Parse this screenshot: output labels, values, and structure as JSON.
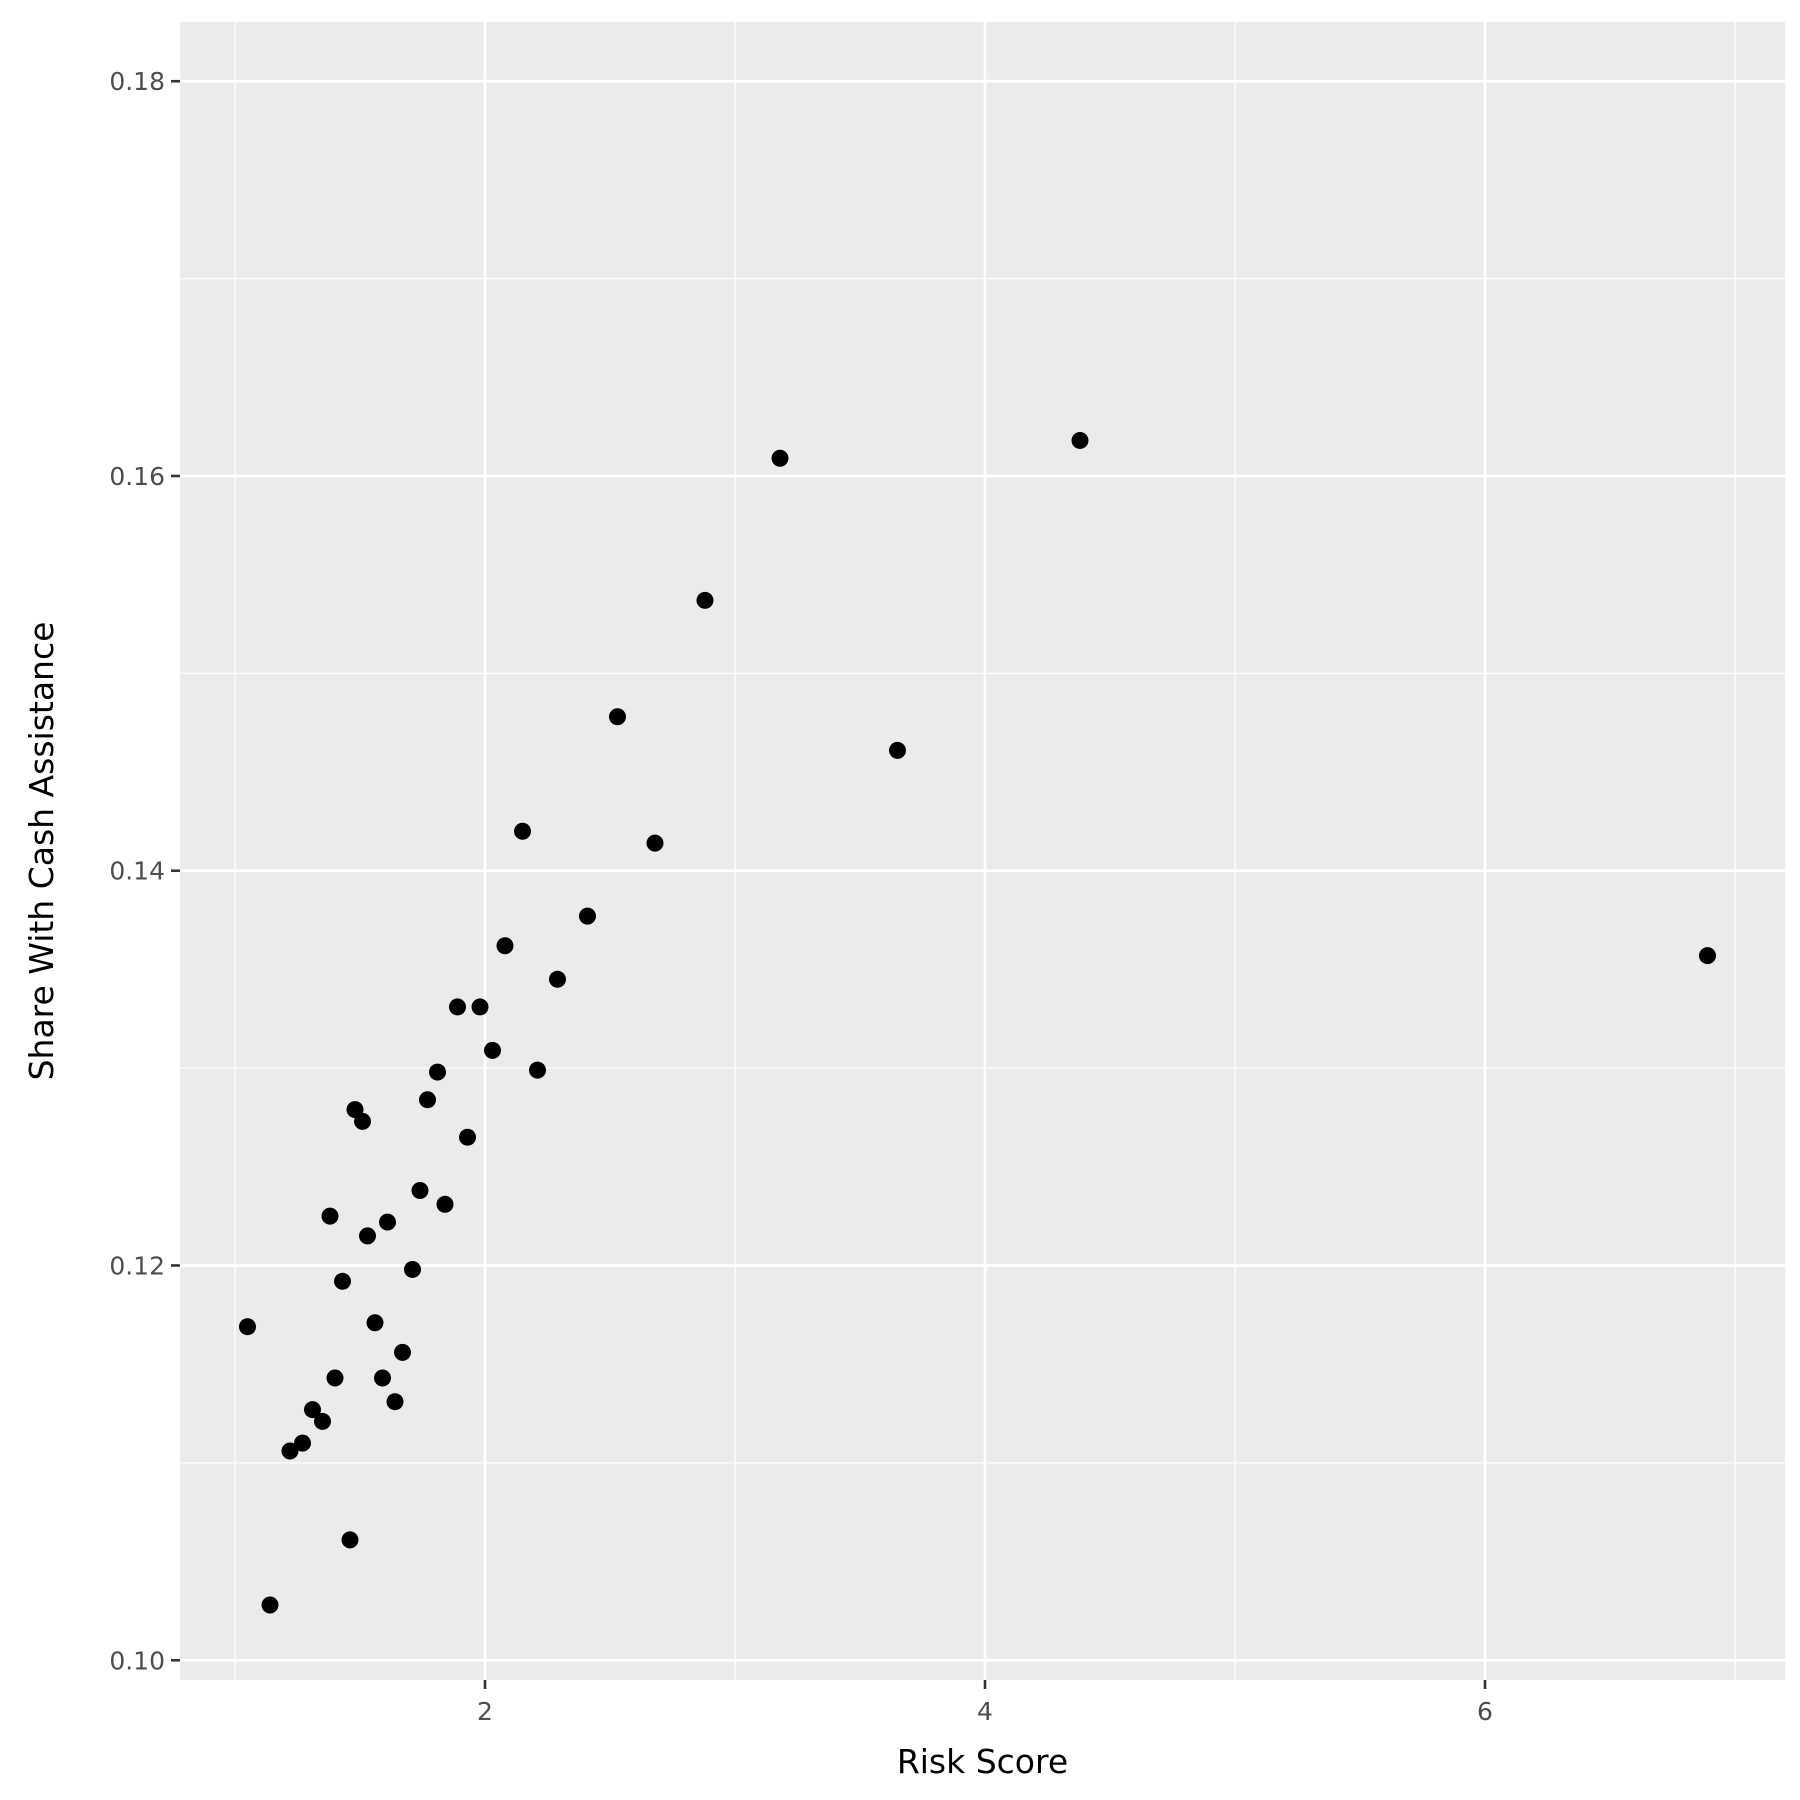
{
  "chart_data": {
    "type": "scatter",
    "title": "",
    "xlabel": "Risk Score",
    "ylabel": "Share With Cash Assistance",
    "xlim": [
      0.78,
      7.2
    ],
    "ylim": [
      0.099,
      0.183
    ],
    "x_ticks": [
      2,
      4,
      6
    ],
    "x_tick_labels": [
      "2",
      "4",
      "6"
    ],
    "x_minor_ticks": [
      1,
      3,
      5,
      7
    ],
    "y_ticks": [
      0.1,
      0.12,
      0.14,
      0.16,
      0.18
    ],
    "y_tick_labels": [
      "0.10",
      "0.12",
      "0.14",
      "0.16",
      "0.18"
    ],
    "y_minor_ticks": [
      0.11,
      0.13,
      0.15,
      0.17
    ],
    "grid": true,
    "legend": "none",
    "colors": {
      "panel": "#ebebeb",
      "grid": "#ffffff",
      "point": "#000000",
      "tick_text": "#4d4d4d",
      "axis_title": "#000000"
    },
    "points": [
      {
        "x": 1.05,
        "y": 0.1169
      },
      {
        "x": 1.14,
        "y": 0.1028
      },
      {
        "x": 1.22,
        "y": 0.1106
      },
      {
        "x": 1.27,
        "y": 0.111
      },
      {
        "x": 1.31,
        "y": 0.1127
      },
      {
        "x": 1.35,
        "y": 0.1121
      },
      {
        "x": 1.38,
        "y": 0.1225
      },
      {
        "x": 1.4,
        "y": 0.1143
      },
      {
        "x": 1.43,
        "y": 0.1192
      },
      {
        "x": 1.46,
        "y": 0.1061
      },
      {
        "x": 1.48,
        "y": 0.1279
      },
      {
        "x": 1.51,
        "y": 0.1273
      },
      {
        "x": 1.53,
        "y": 0.1215
      },
      {
        "x": 1.56,
        "y": 0.1171
      },
      {
        "x": 1.59,
        "y": 0.1143
      },
      {
        "x": 1.61,
        "y": 0.1222
      },
      {
        "x": 1.64,
        "y": 0.1131
      },
      {
        "x": 1.67,
        "y": 0.1156
      },
      {
        "x": 1.71,
        "y": 0.1198
      },
      {
        "x": 1.74,
        "y": 0.1238
      },
      {
        "x": 1.77,
        "y": 0.1284
      },
      {
        "x": 1.81,
        "y": 0.1298
      },
      {
        "x": 1.84,
        "y": 0.1231
      },
      {
        "x": 1.89,
        "y": 0.1331
      },
      {
        "x": 1.93,
        "y": 0.1265
      },
      {
        "x": 1.98,
        "y": 0.1331
      },
      {
        "x": 2.03,
        "y": 0.1309
      },
      {
        "x": 2.08,
        "y": 0.1362
      },
      {
        "x": 2.15,
        "y": 0.142
      },
      {
        "x": 2.21,
        "y": 0.1299
      },
      {
        "x": 2.29,
        "y": 0.1345
      },
      {
        "x": 2.41,
        "y": 0.1377
      },
      {
        "x": 2.53,
        "y": 0.1478
      },
      {
        "x": 2.68,
        "y": 0.1414
      },
      {
        "x": 2.88,
        "y": 0.1537
      },
      {
        "x": 3.18,
        "y": 0.1609
      },
      {
        "x": 3.65,
        "y": 0.1461
      },
      {
        "x": 4.38,
        "y": 0.1618
      },
      {
        "x": 6.89,
        "y": 0.1357
      }
    ]
  }
}
